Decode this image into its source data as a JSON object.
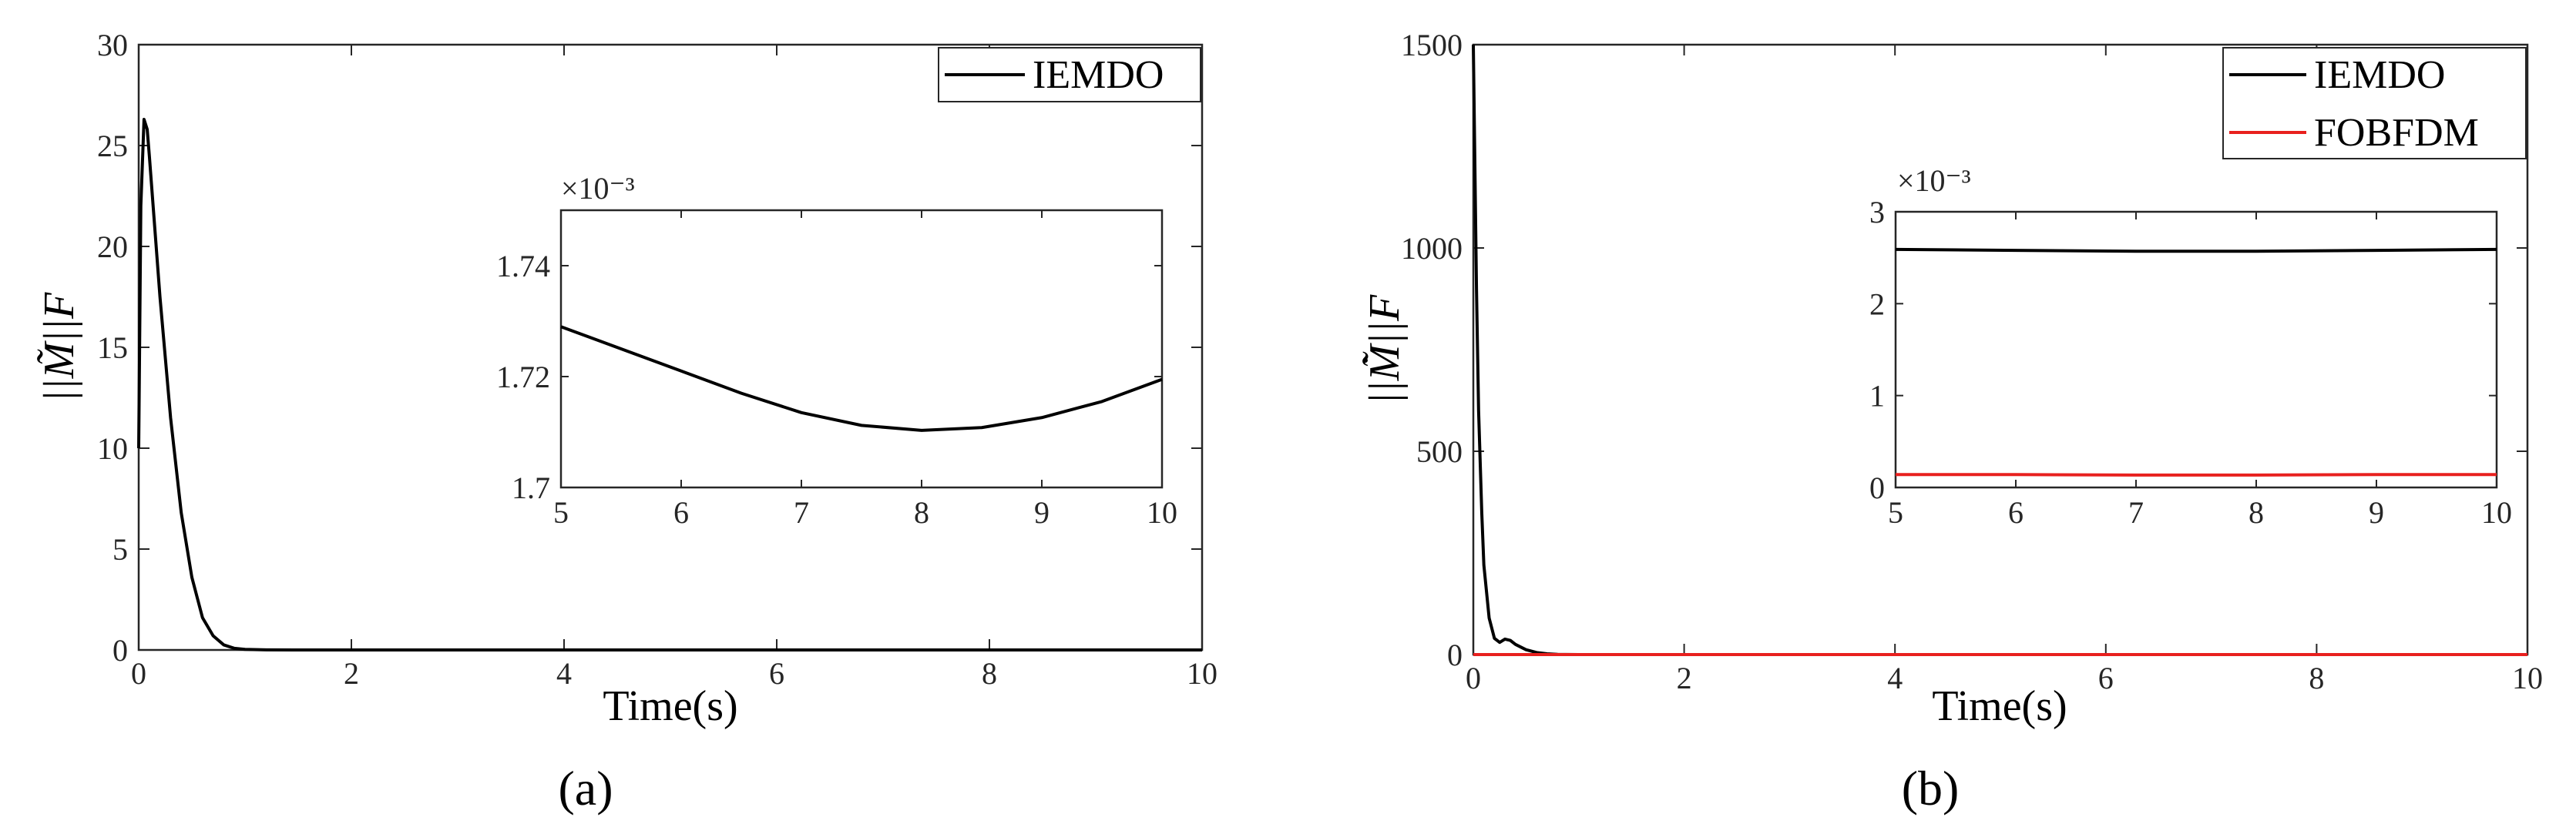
{
  "chart_data": [
    {
      "type": "line",
      "panel": "a",
      "caption": "(a)",
      "xlabel": "Time(s)",
      "ylabel": "||M̃||F",
      "xlim": [
        0,
        10
      ],
      "ylim": [
        0,
        30
      ],
      "xticks": [
        "0",
        "2",
        "4",
        "6",
        "8",
        "10"
      ],
      "yticks": [
        "0",
        "5",
        "10",
        "15",
        "20",
        "25",
        "30"
      ],
      "legend_position": "top-right",
      "series": [
        {
          "name": "IEMDO",
          "color": "#000000",
          "x": [
            0,
            0.02,
            0.05,
            0.08,
            0.1,
            0.15,
            0.2,
            0.3,
            0.4,
            0.5,
            0.6,
            0.7,
            0.8,
            0.9,
            1.0,
            1.2,
            1.5,
            2,
            4,
            6,
            8,
            10
          ],
          "y": [
            10,
            22,
            26.3,
            25.8,
            24.5,
            21,
            17.5,
            11.5,
            6.8,
            3.6,
            1.6,
            0.7,
            0.25,
            0.08,
            0.03,
            0.005,
            0.002,
            0.0018,
            0.0017,
            0.0017,
            0.0017,
            0.0017
          ]
        }
      ],
      "inset": {
        "xlim": [
          5,
          10
        ],
        "ylim": [
          0.0017,
          0.00175
        ],
        "xticks": [
          "5",
          "6",
          "7",
          "8",
          "9",
          "10"
        ],
        "yticks": [
          "1.7",
          "1.72",
          "1.74"
        ],
        "exponent": "×10⁻³",
        "series": [
          {
            "name": "IEMDO",
            "color": "#000000",
            "x": [
              5,
              5.5,
              6,
              6.5,
              7,
              7.5,
              8,
              8.5,
              9,
              9.5,
              10
            ],
            "y": [
              0.001729,
              0.001725,
              0.001721,
              0.001717,
              0.0017135,
              0.0017112,
              0.0017103,
              0.0017108,
              0.0017126,
              0.0017155,
              0.0017195
            ]
          }
        ]
      }
    },
    {
      "type": "line",
      "panel": "b",
      "caption": "(b)",
      "xlabel": "Time(s)",
      "ylabel": "||M̃̇||F",
      "xlim": [
        0,
        10
      ],
      "ylim": [
        0,
        1500
      ],
      "xticks": [
        "0",
        "2",
        "4",
        "6",
        "8",
        "10"
      ],
      "yticks": [
        "0",
        "500",
        "1000",
        "1500"
      ],
      "legend_position": "top-right",
      "series": [
        {
          "name": "IEMDO",
          "color": "#000000",
          "x": [
            0,
            0.01,
            0.03,
            0.05,
            0.08,
            0.1,
            0.15,
            0.2,
            0.25,
            0.3,
            0.35,
            0.4,
            0.5,
            0.6,
            0.7,
            0.8,
            1.0,
            2,
            4,
            6,
            8,
            10
          ],
          "y": [
            1500,
            1300,
            900,
            600,
            350,
            220,
            90,
            40,
            30,
            38,
            35,
            25,
            12,
            5,
            2,
            0.5,
            0.05,
            0.003,
            0.0026,
            0.0026,
            0.0026,
            0.0026
          ]
        },
        {
          "name": "FOBFDM",
          "color": "#e8201e",
          "x": [
            0,
            10
          ],
          "y": [
            0.00015,
            0.00015
          ]
        }
      ],
      "inset": {
        "xlim": [
          5,
          10
        ],
        "ylim": [
          0,
          0.003
        ],
        "xticks": [
          "5",
          "6",
          "7",
          "8",
          "9",
          "10"
        ],
        "yticks": [
          "0",
          "1",
          "2",
          "3"
        ],
        "exponent": "×10⁻³",
        "series": [
          {
            "name": "IEMDO",
            "color": "#000000",
            "x": [
              5,
              6,
              7,
              8,
              9,
              10
            ],
            "y": [
              0.00259,
              0.00258,
              0.00257,
              0.00257,
              0.00258,
              0.00259
            ]
          },
          {
            "name": "FOBFDM",
            "color": "#e8201e",
            "x": [
              5,
              6,
              7,
              8,
              9,
              10
            ],
            "y": [
              0.00014,
              0.00014,
              0.000135,
              0.000135,
              0.00014,
              0.00014
            ]
          }
        ]
      }
    }
  ]
}
